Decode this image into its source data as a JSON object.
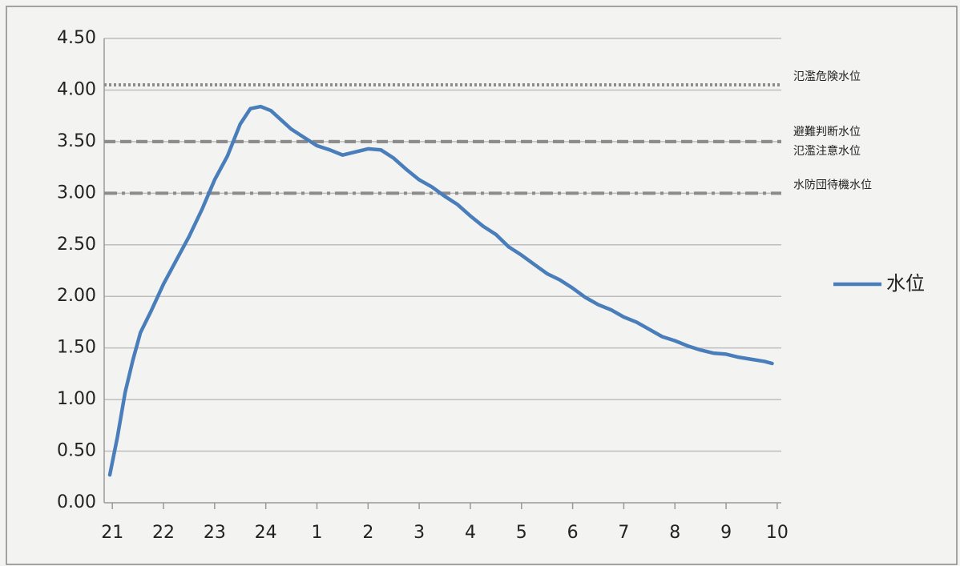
{
  "chart_data": {
    "type": "line",
    "x": [
      -0.05,
      0.1,
      0.25,
      0.4,
      0.55,
      0.75,
      1.0,
      1.25,
      1.5,
      1.75,
      2.0,
      2.25,
      2.5,
      2.7,
      2.9,
      3.1,
      3.3,
      3.5,
      3.75,
      4.0,
      4.25,
      4.5,
      4.75,
      5.0,
      5.25,
      5.5,
      5.75,
      6.0,
      6.25,
      6.5,
      6.75,
      7.0,
      7.25,
      7.5,
      7.75,
      8.0,
      8.25,
      8.5,
      8.75,
      9.0,
      9.25,
      9.5,
      9.75,
      10.0,
      10.25,
      10.5,
      10.75,
      11.0,
      11.25,
      11.5,
      11.75,
      12.0,
      12.25,
      12.5,
      12.75,
      12.9
    ],
    "series": [
      {
        "name": "水位",
        "color": "#4a7ebb",
        "values": [
          0.27,
          0.64,
          1.07,
          1.38,
          1.65,
          1.85,
          2.12,
          2.35,
          2.58,
          2.84,
          3.13,
          3.36,
          3.67,
          3.82,
          3.84,
          3.8,
          3.71,
          3.62,
          3.54,
          3.46,
          3.42,
          3.37,
          3.4,
          3.43,
          3.42,
          3.34,
          3.23,
          3.13,
          3.06,
          2.97,
          2.89,
          2.78,
          2.68,
          2.6,
          2.48,
          2.4,
          2.31,
          2.22,
          2.16,
          2.08,
          1.99,
          1.92,
          1.87,
          1.8,
          1.75,
          1.68,
          1.61,
          1.57,
          1.52,
          1.48,
          1.45,
          1.44,
          1.41,
          1.39,
          1.37,
          1.35
        ]
      }
    ],
    "reference_lines": [
      {
        "name": "氾濫危険水位",
        "value": 4.05,
        "style": "dotted"
      },
      {
        "name": "避難判断水位",
        "value": 3.5,
        "style": "dashed"
      },
      {
        "name": "氾濫注意水位",
        "value": 3.5,
        "style": "dashed"
      },
      {
        "name": "水防団待機水位",
        "value": 3.0,
        "style": "dashdot"
      }
    ],
    "xlim": [
      -0.16,
      13.08
    ],
    "xticks": [
      {
        "value": 0,
        "label": "21"
      },
      {
        "value": 1,
        "label": "22"
      },
      {
        "value": 2,
        "label": "23"
      },
      {
        "value": 3,
        "label": "24"
      },
      {
        "value": 4,
        "label": "1"
      },
      {
        "value": 5,
        "label": "2"
      },
      {
        "value": 6,
        "label": "3"
      },
      {
        "value": 7,
        "label": "4"
      },
      {
        "value": 8,
        "label": "5"
      },
      {
        "value": 9,
        "label": "6"
      },
      {
        "value": 10,
        "label": "7"
      },
      {
        "value": 11,
        "label": "8"
      },
      {
        "value": 12,
        "label": "9"
      },
      {
        "value": 13,
        "label": "10"
      }
    ],
    "ylim": [
      0,
      4.5
    ],
    "yticks": [
      {
        "value": 0,
        "label": "0.00"
      },
      {
        "value": 0.5,
        "label": "0.50"
      },
      {
        "value": 1,
        "label": "1.00"
      },
      {
        "value": 1.5,
        "label": "1.50"
      },
      {
        "value": 2,
        "label": "2.00"
      },
      {
        "value": 2.5,
        "label": "2.50"
      },
      {
        "value": 3,
        "label": "3.00"
      },
      {
        "value": 3.5,
        "label": "3.50"
      },
      {
        "value": 4,
        "label": "4.00"
      },
      {
        "value": 4.5,
        "label": "4.50"
      }
    ],
    "grid": true,
    "legend": "right"
  }
}
